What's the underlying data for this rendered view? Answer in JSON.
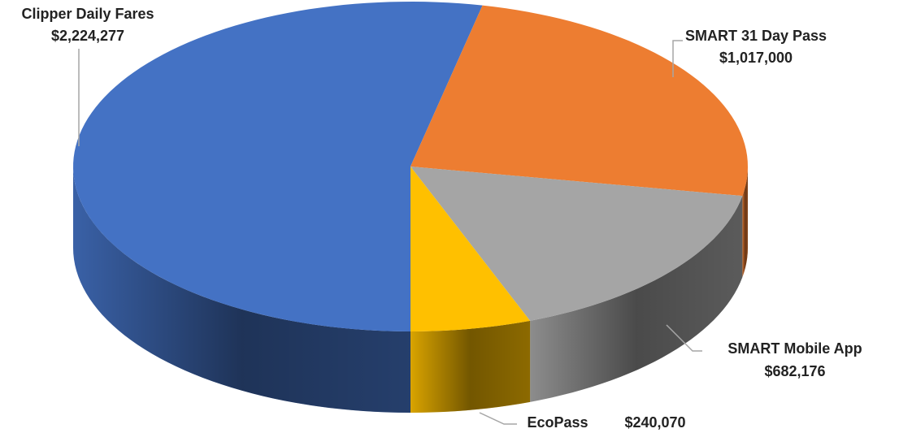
{
  "chart_data": {
    "type": "pie",
    "categories": [
      "Clipper Daily Fares",
      "SMART 31 Day Pass",
      "SMART Mobile App",
      "EcoPass"
    ],
    "values": [
      2224277,
      1017000,
      682176,
      240070
    ],
    "value_labels": [
      "$2,224,277",
      "$1,017,000",
      "$682,176",
      "$240,070"
    ],
    "colors": [
      "#4472c4",
      "#ed7d31",
      "#a5a5a5",
      "#ffc000"
    ]
  }
}
